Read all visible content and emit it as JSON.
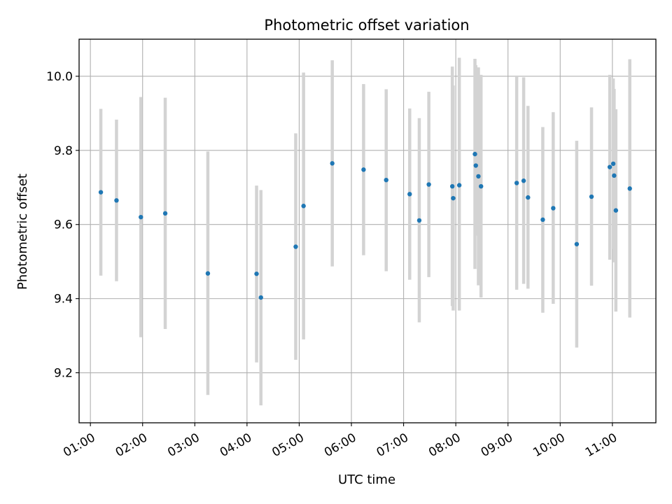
{
  "chart_data": {
    "type": "scatter",
    "title": "Photometric offset variation",
    "xlabel": "UTC time",
    "ylabel": "Photometric offset",
    "x_ticks": [
      "01:00",
      "02:00",
      "03:00",
      "04:00",
      "05:00",
      "06:00",
      "07:00",
      "08:00",
      "09:00",
      "10:00",
      "11:00"
    ],
    "y_ticks": [
      "9.2",
      "9.4",
      "9.6",
      "9.8",
      "10.0"
    ],
    "xlim": [
      "00:47",
      "11:50"
    ],
    "ylim": [
      9.065,
      10.1
    ],
    "grid": true,
    "marker_color": "#1f77b4",
    "errorbar_color": "#d3d3d3",
    "points": [
      {
        "x": "01:12",
        "y": 9.687,
        "err_low": 9.462,
        "err_high": 9.912
      },
      {
        "x": "01:30",
        "y": 9.665,
        "err_low": 9.447,
        "err_high": 9.883
      },
      {
        "x": "01:58",
        "y": 9.62,
        "err_low": 9.296,
        "err_high": 9.944
      },
      {
        "x": "02:26",
        "y": 9.63,
        "err_low": 9.318,
        "err_high": 9.942
      },
      {
        "x": "03:15",
        "y": 9.468,
        "err_low": 9.14,
        "err_high": 9.797
      },
      {
        "x": "04:11",
        "y": 9.467,
        "err_low": 9.228,
        "err_high": 9.705
      },
      {
        "x": "04:16",
        "y": 9.403,
        "err_low": 9.112,
        "err_high": 9.693
      },
      {
        "x": "04:56",
        "y": 9.54,
        "err_low": 9.235,
        "err_high": 9.846
      },
      {
        "x": "05:05",
        "y": 9.65,
        "err_low": 9.29,
        "err_high": 10.01
      },
      {
        "x": "05:38",
        "y": 9.765,
        "err_low": 9.487,
        "err_high": 10.043
      },
      {
        "x": "06:14",
        "y": 9.748,
        "err_low": 9.517,
        "err_high": 9.979
      },
      {
        "x": "06:40",
        "y": 9.72,
        "err_low": 9.474,
        "err_high": 9.965
      },
      {
        "x": "07:07",
        "y": 9.682,
        "err_low": 9.451,
        "err_high": 9.913
      },
      {
        "x": "07:18",
        "y": 9.611,
        "err_low": 9.336,
        "err_high": 9.887
      },
      {
        "x": "07:29",
        "y": 9.708,
        "err_low": 9.458,
        "err_high": 9.958
      },
      {
        "x": "07:56",
        "y": 9.703,
        "err_low": 9.38,
        "err_high": 10.026
      },
      {
        "x": "07:57",
        "y": 9.671,
        "err_low": 9.368,
        "err_high": 9.975
      },
      {
        "x": "08:04",
        "y": 9.706,
        "err_low": 9.368,
        "err_high": 10.05
      },
      {
        "x": "08:22",
        "y": 9.79,
        "err_low": 9.48,
        "err_high": 10.047
      },
      {
        "x": "08:23",
        "y": 9.759,
        "err_low": 9.57,
        "err_high": 10.03
      },
      {
        "x": "08:26",
        "y": 9.73,
        "err_low": 9.436,
        "err_high": 10.024
      },
      {
        "x": "08:29",
        "y": 9.703,
        "err_low": 9.403,
        "err_high": 10.004
      },
      {
        "x": "09:10",
        "y": 9.712,
        "err_low": 9.424,
        "err_high": 10.0
      },
      {
        "x": "09:18",
        "y": 9.718,
        "err_low": 9.44,
        "err_high": 9.997
      },
      {
        "x": "09:23",
        "y": 9.673,
        "err_low": 9.427,
        "err_high": 9.92
      },
      {
        "x": "09:40",
        "y": 9.613,
        "err_low": 9.362,
        "err_high": 9.863
      },
      {
        "x": "09:52",
        "y": 9.644,
        "err_low": 9.386,
        "err_high": 9.903
      },
      {
        "x": "10:19",
        "y": 9.547,
        "err_low": 9.268,
        "err_high": 9.826
      },
      {
        "x": "10:36",
        "y": 9.675,
        "err_low": 9.435,
        "err_high": 9.916
      },
      {
        "x": "10:57",
        "y": 9.755,
        "err_low": 9.505,
        "err_high": 10.004
      },
      {
        "x": "11:01",
        "y": 9.764,
        "err_low": 9.534,
        "err_high": 9.994
      },
      {
        "x": "11:02",
        "y": 9.732,
        "err_low": 9.498,
        "err_high": 9.966
      },
      {
        "x": "11:04",
        "y": 9.638,
        "err_low": 9.365,
        "err_high": 9.911
      },
      {
        "x": "11:20",
        "y": 9.697,
        "err_low": 9.349,
        "err_high": 10.046
      }
    ]
  }
}
